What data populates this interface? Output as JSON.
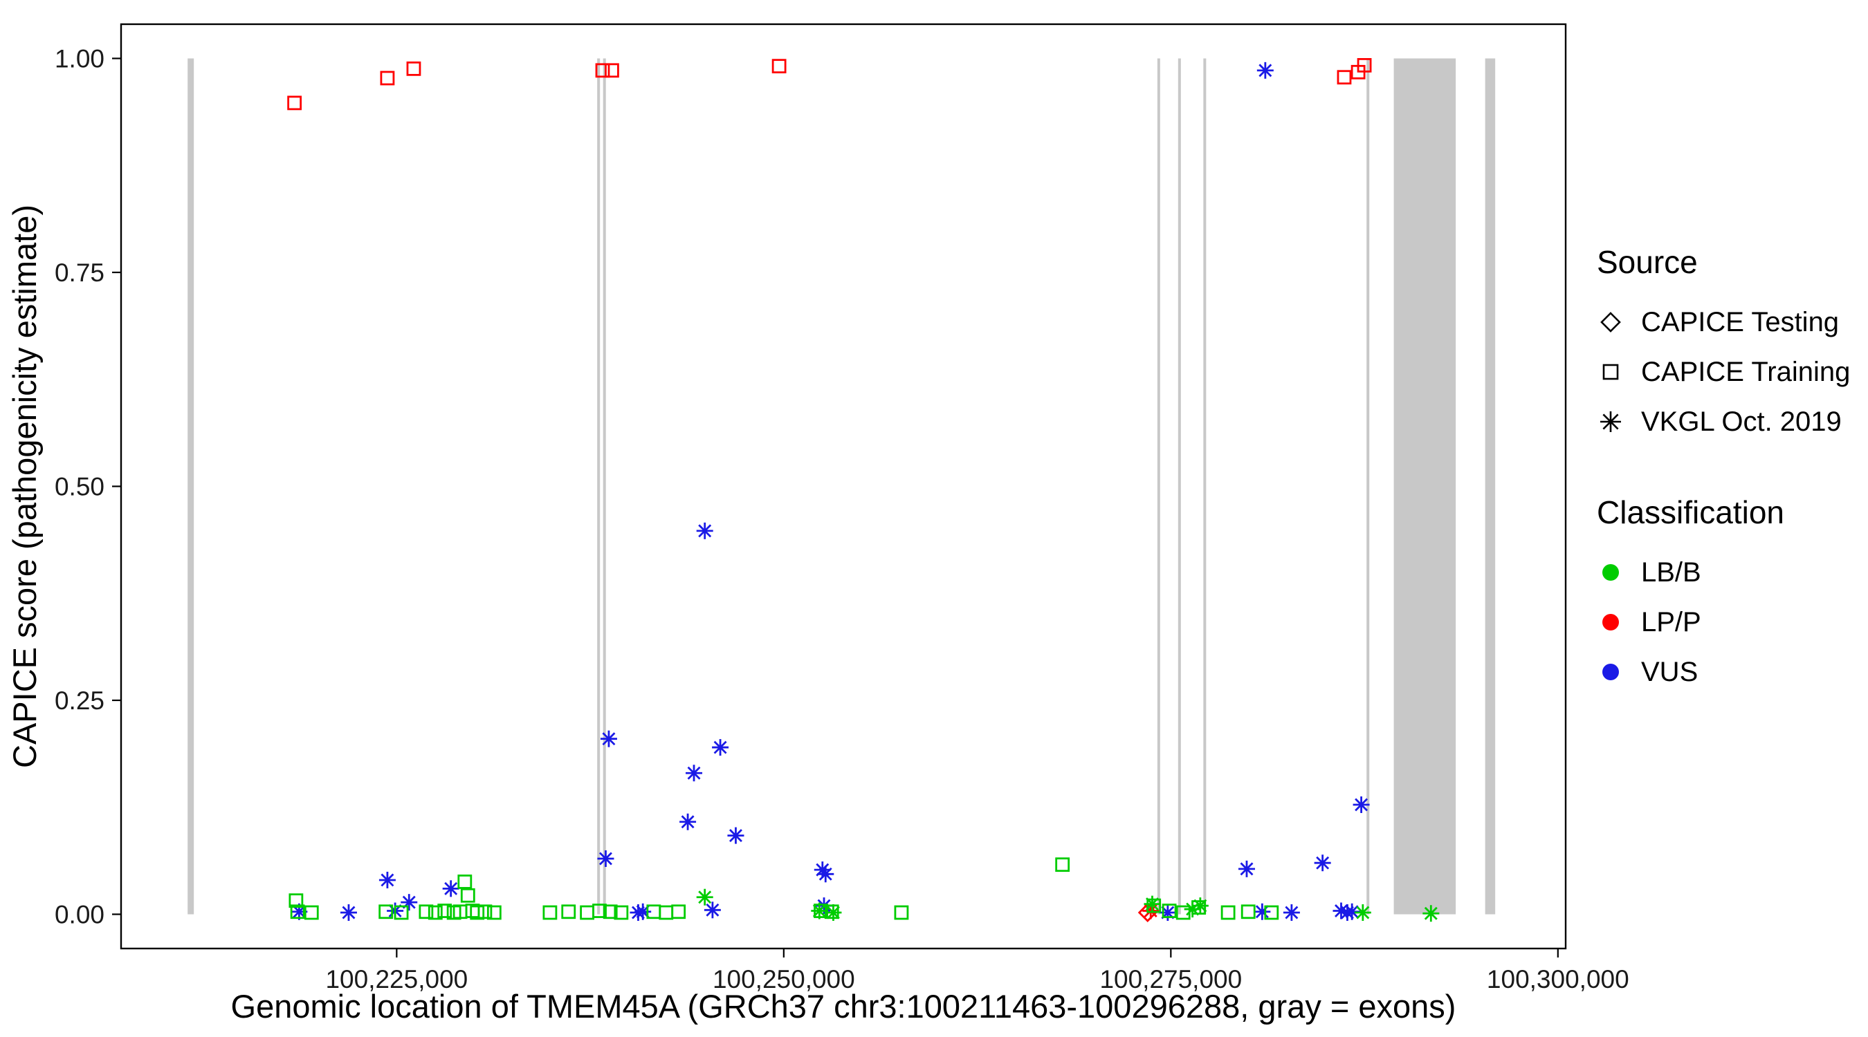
{
  "chart_data": {
    "type": "scatter",
    "title": "",
    "xlabel": "Genomic location of TMEM45A (GRCh37 chr3:100211463-100296288, gray = exons)",
    "ylabel": "CAPICE score (pathogenicity estimate)",
    "xlim": [
      100207200,
      100300500
    ],
    "ylim": [
      -0.04,
      1.04
    ],
    "grid": "off",
    "legend_position": "right",
    "x_ticks": [
      {
        "value": 100225000,
        "label": "100,225,000"
      },
      {
        "value": 100250000,
        "label": "100,250,000"
      },
      {
        "value": 100275000,
        "label": "100,275,000"
      },
      {
        "value": 100300000,
        "label": "100,300,000"
      }
    ],
    "y_ticks": [
      {
        "value": 0.0,
        "label": "0.00"
      },
      {
        "value": 0.25,
        "label": "0.25"
      },
      {
        "value": 0.5,
        "label": "0.50"
      },
      {
        "value": 0.75,
        "label": "0.75"
      },
      {
        "value": 1.0,
        "label": "1.00"
      }
    ],
    "exon_color": "#c8c8c8",
    "exons": [
      [
        100211500,
        100211900
      ],
      [
        100237950,
        100238130
      ],
      [
        100238330,
        100238510
      ],
      [
        100274130,
        100274300
      ],
      [
        100275470,
        100275640
      ],
      [
        100277100,
        100277280
      ],
      [
        100287640,
        100287820
      ],
      [
        100289400,
        100293400
      ],
      [
        100295300,
        100295950
      ]
    ],
    "classification_colors": {
      "LB/B": "#00cc00",
      "LP/P": "#ff0000",
      "VUS": "#1a1ae6"
    },
    "source_shapes": {
      "CAPICE Testing": "diamond",
      "CAPICE Training": "square",
      "VKGL Oct. 2019": "asterisk"
    },
    "points": [
      {
        "x": 100218400,
        "y": 0.948,
        "source": "CAPICE Training",
        "class": "LP/P"
      },
      {
        "x": 100224400,
        "y": 0.977,
        "source": "CAPICE Training",
        "class": "LP/P"
      },
      {
        "x": 100226100,
        "y": 0.988,
        "source": "CAPICE Training",
        "class": "LP/P"
      },
      {
        "x": 100238300,
        "y": 0.986,
        "source": "CAPICE Training",
        "class": "LP/P"
      },
      {
        "x": 100238900,
        "y": 0.986,
        "source": "CAPICE Training",
        "class": "LP/P"
      },
      {
        "x": 100249700,
        "y": 0.991,
        "source": "CAPICE Training",
        "class": "LP/P"
      },
      {
        "x": 100286200,
        "y": 0.978,
        "source": "CAPICE Training",
        "class": "LP/P"
      },
      {
        "x": 100287100,
        "y": 0.984,
        "source": "CAPICE Training",
        "class": "LP/P"
      },
      {
        "x": 100287500,
        "y": 0.992,
        "source": "CAPICE Training",
        "class": "LP/P"
      },
      {
        "x": 100273700,
        "y": 0.004,
        "source": "VKGL Oct. 2019",
        "class": "LP/P"
      },
      {
        "x": 100273500,
        "y": 0.002,
        "source": "CAPICE Testing",
        "class": "LP/P"
      },
      {
        "x": 100281100,
        "y": 0.986,
        "source": "VKGL Oct. 2019",
        "class": "VUS"
      },
      {
        "x": 100244900,
        "y": 0.448,
        "source": "VKGL Oct. 2019",
        "class": "VUS"
      },
      {
        "x": 100238700,
        "y": 0.205,
        "source": "VKGL Oct. 2019",
        "class": "VUS"
      },
      {
        "x": 100245900,
        "y": 0.195,
        "source": "VKGL Oct. 2019",
        "class": "VUS"
      },
      {
        "x": 100244200,
        "y": 0.165,
        "source": "VKGL Oct. 2019",
        "class": "VUS"
      },
      {
        "x": 100243800,
        "y": 0.108,
        "source": "VKGL Oct. 2019",
        "class": "VUS"
      },
      {
        "x": 100246900,
        "y": 0.092,
        "source": "VKGL Oct. 2019",
        "class": "VUS"
      },
      {
        "x": 100238500,
        "y": 0.065,
        "source": "VKGL Oct. 2019",
        "class": "VUS"
      },
      {
        "x": 100252500,
        "y": 0.052,
        "source": "VKGL Oct. 2019",
        "class": "VUS"
      },
      {
        "x": 100252700,
        "y": 0.047,
        "source": "VKGL Oct. 2019",
        "class": "VUS"
      },
      {
        "x": 100224400,
        "y": 0.04,
        "source": "VKGL Oct. 2019",
        "class": "VUS"
      },
      {
        "x": 100228500,
        "y": 0.03,
        "source": "VKGL Oct. 2019",
        "class": "VUS"
      },
      {
        "x": 100225800,
        "y": 0.014,
        "source": "VKGL Oct. 2019",
        "class": "VUS"
      },
      {
        "x": 100287300,
        "y": 0.128,
        "source": "VKGL Oct. 2019",
        "class": "VUS"
      },
      {
        "x": 100279900,
        "y": 0.053,
        "source": "VKGL Oct. 2019",
        "class": "VUS"
      },
      {
        "x": 100284800,
        "y": 0.06,
        "source": "VKGL Oct. 2019",
        "class": "VUS"
      },
      {
        "x": 100218700,
        "y": 0.003,
        "source": "VKGL Oct. 2019",
        "class": "VUS"
      },
      {
        "x": 100221900,
        "y": 0.002,
        "source": "VKGL Oct. 2019",
        "class": "VUS"
      },
      {
        "x": 100224900,
        "y": 0.004,
        "source": "VKGL Oct. 2019",
        "class": "VUS"
      },
      {
        "x": 100240600,
        "y": 0.002,
        "source": "VKGL Oct. 2019",
        "class": "VUS"
      },
      {
        "x": 100240900,
        "y": 0.003,
        "source": "VKGL Oct. 2019",
        "class": "VUS"
      },
      {
        "x": 100245400,
        "y": 0.005,
        "source": "VKGL Oct. 2019",
        "class": "VUS"
      },
      {
        "x": 100252600,
        "y": 0.01,
        "source": "VKGL Oct. 2019",
        "class": "VUS"
      },
      {
        "x": 100274800,
        "y": 0.002,
        "source": "VKGL Oct. 2019",
        "class": "VUS"
      },
      {
        "x": 100280900,
        "y": 0.003,
        "source": "VKGL Oct. 2019",
        "class": "VUS"
      },
      {
        "x": 100282800,
        "y": 0.002,
        "source": "VKGL Oct. 2019",
        "class": "VUS"
      },
      {
        "x": 100286000,
        "y": 0.004,
        "source": "VKGL Oct. 2019",
        "class": "VUS"
      },
      {
        "x": 100286400,
        "y": 0.002,
        "source": "VKGL Oct. 2019",
        "class": "VUS"
      },
      {
        "x": 100286700,
        "y": 0.003,
        "source": "VKGL Oct. 2019",
        "class": "VUS"
      },
      {
        "x": 100218500,
        "y": 0.016,
        "source": "CAPICE Training",
        "class": "LB/B"
      },
      {
        "x": 100218600,
        "y": 0.003,
        "source": "CAPICE Training",
        "class": "LB/B"
      },
      {
        "x": 100219500,
        "y": 0.002,
        "source": "CAPICE Training",
        "class": "LB/B"
      },
      {
        "x": 100224300,
        "y": 0.003,
        "source": "CAPICE Training",
        "class": "LB/B"
      },
      {
        "x": 100225300,
        "y": 0.002,
        "source": "CAPICE Training",
        "class": "LB/B"
      },
      {
        "x": 100226900,
        "y": 0.003,
        "source": "CAPICE Training",
        "class": "LB/B"
      },
      {
        "x": 100227500,
        "y": 0.002,
        "source": "CAPICE Training",
        "class": "LB/B"
      },
      {
        "x": 100228100,
        "y": 0.004,
        "source": "CAPICE Training",
        "class": "LB/B"
      },
      {
        "x": 100228700,
        "y": 0.002,
        "source": "CAPICE Training",
        "class": "LB/B"
      },
      {
        "x": 100229100,
        "y": 0.003,
        "source": "CAPICE Training",
        "class": "LB/B"
      },
      {
        "x": 100229400,
        "y": 0.038,
        "source": "CAPICE Training",
        "class": "LB/B"
      },
      {
        "x": 100229600,
        "y": 0.022,
        "source": "CAPICE Training",
        "class": "LB/B"
      },
      {
        "x": 100229900,
        "y": 0.004,
        "source": "CAPICE Training",
        "class": "LB/B"
      },
      {
        "x": 100230200,
        "y": 0.002,
        "source": "CAPICE Training",
        "class": "LB/B"
      },
      {
        "x": 100230700,
        "y": 0.003,
        "source": "CAPICE Training",
        "class": "LB/B"
      },
      {
        "x": 100231300,
        "y": 0.002,
        "source": "CAPICE Training",
        "class": "LB/B"
      },
      {
        "x": 100234900,
        "y": 0.002,
        "source": "CAPICE Training",
        "class": "LB/B"
      },
      {
        "x": 100236100,
        "y": 0.003,
        "source": "CAPICE Training",
        "class": "LB/B"
      },
      {
        "x": 100237300,
        "y": 0.002,
        "source": "CAPICE Training",
        "class": "LB/B"
      },
      {
        "x": 100238100,
        "y": 0.004,
        "source": "CAPICE Training",
        "class": "LB/B"
      },
      {
        "x": 100238800,
        "y": 0.003,
        "source": "CAPICE Training",
        "class": "LB/B"
      },
      {
        "x": 100239500,
        "y": 0.002,
        "source": "CAPICE Training",
        "class": "LB/B"
      },
      {
        "x": 100241600,
        "y": 0.003,
        "source": "CAPICE Training",
        "class": "LB/B"
      },
      {
        "x": 100242400,
        "y": 0.002,
        "source": "CAPICE Training",
        "class": "LB/B"
      },
      {
        "x": 100243200,
        "y": 0.003,
        "source": "CAPICE Training",
        "class": "LB/B"
      },
      {
        "x": 100252400,
        "y": 0.004,
        "source": "CAPICE Training",
        "class": "LB/B"
      },
      {
        "x": 100253100,
        "y": 0.003,
        "source": "CAPICE Training",
        "class": "LB/B"
      },
      {
        "x": 100257600,
        "y": 0.002,
        "source": "CAPICE Training",
        "class": "LB/B"
      },
      {
        "x": 100268000,
        "y": 0.058,
        "source": "CAPICE Training",
        "class": "LB/B"
      },
      {
        "x": 100273900,
        "y": 0.01,
        "source": "CAPICE Training",
        "class": "LB/B"
      },
      {
        "x": 100274900,
        "y": 0.004,
        "source": "CAPICE Training",
        "class": "LB/B"
      },
      {
        "x": 100275800,
        "y": 0.002,
        "source": "CAPICE Training",
        "class": "LB/B"
      },
      {
        "x": 100276800,
        "y": 0.008,
        "source": "CAPICE Training",
        "class": "LB/B"
      },
      {
        "x": 100278700,
        "y": 0.002,
        "source": "CAPICE Training",
        "class": "LB/B"
      },
      {
        "x": 100280000,
        "y": 0.003,
        "source": "CAPICE Training",
        "class": "LB/B"
      },
      {
        "x": 100281500,
        "y": 0.002,
        "source": "CAPICE Training",
        "class": "LB/B"
      },
      {
        "x": 100244900,
        "y": 0.02,
        "source": "VKGL Oct. 2019",
        "class": "LB/B"
      },
      {
        "x": 100252300,
        "y": 0.004,
        "source": "VKGL Oct. 2019",
        "class": "LB/B"
      },
      {
        "x": 100253200,
        "y": 0.002,
        "source": "VKGL Oct. 2019",
        "class": "LB/B"
      },
      {
        "x": 100273800,
        "y": 0.012,
        "source": "VKGL Oct. 2019",
        "class": "LB/B"
      },
      {
        "x": 100276400,
        "y": 0.006,
        "source": "VKGL Oct. 2019",
        "class": "LB/B"
      },
      {
        "x": 100276900,
        "y": 0.01,
        "source": "VKGL Oct. 2019",
        "class": "LB/B"
      },
      {
        "x": 100287400,
        "y": 0.002,
        "source": "VKGL Oct. 2019",
        "class": "LB/B"
      },
      {
        "x": 100291800,
        "y": 0.001,
        "source": "VKGL Oct. 2019",
        "class": "LB/B"
      }
    ]
  },
  "legend": {
    "source_title": "Source",
    "source_items": [
      {
        "label": "CAPICE Testing",
        "shape": "diamond"
      },
      {
        "label": "CAPICE Training",
        "shape": "square"
      },
      {
        "label": "VKGL Oct. 2019",
        "shape": "asterisk"
      }
    ],
    "classification_title": "Classification",
    "classification_items": [
      {
        "label": "LB/B",
        "color": "#00cc00"
      },
      {
        "label": "LP/P",
        "color": "#ff0000"
      },
      {
        "label": "VUS",
        "color": "#1a1ae6"
      }
    ]
  }
}
